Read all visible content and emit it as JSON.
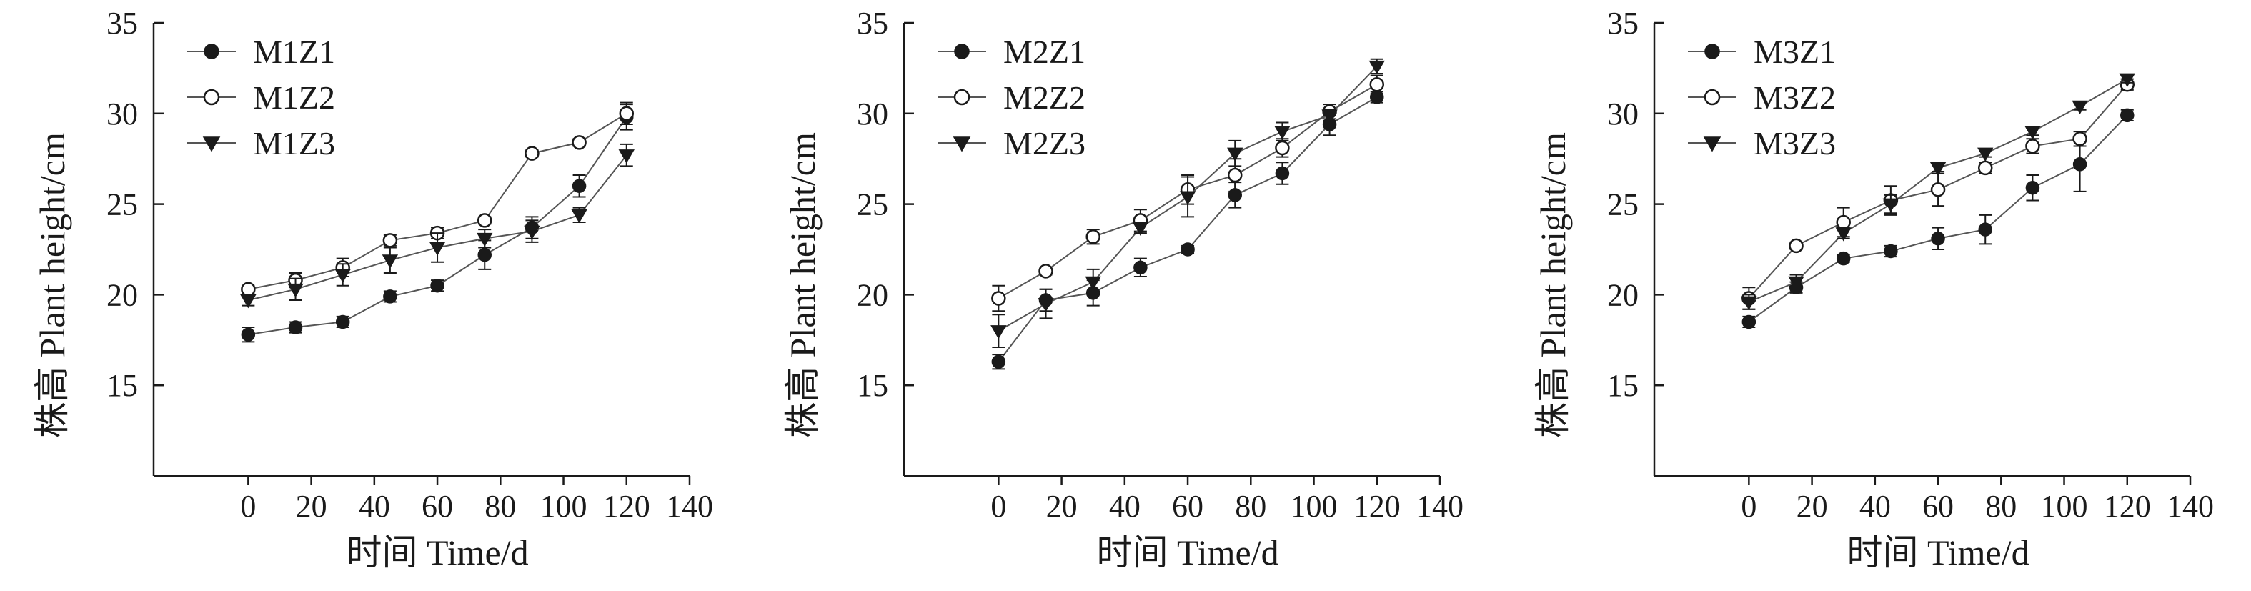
{
  "chart_data": [
    {
      "type": "line",
      "xlabel": "时间 Time/d",
      "ylabel": "株高 Plant height/cm",
      "xlim": [
        -30,
        140
      ],
      "ylim": [
        10,
        35
      ],
      "xticks": [
        0,
        20,
        40,
        60,
        80,
        100,
        120,
        140
      ],
      "yticks": [
        15,
        20,
        25,
        30,
        35
      ],
      "x": [
        0,
        15,
        30,
        45,
        60,
        75,
        90,
        105,
        120
      ],
      "legend_position": "top-left",
      "series": [
        {
          "name": "M1Z1",
          "marker": "filled-circle",
          "values": [
            17.8,
            18.2,
            18.5,
            19.9,
            20.5,
            22.2,
            23.7,
            26.0,
            29.8
          ],
          "errors": [
            0.4,
            0.3,
            0.3,
            0.3,
            0.3,
            0.8,
            0.6,
            0.6,
            0.7
          ]
        },
        {
          "name": "M1Z2",
          "marker": "open-circle",
          "values": [
            20.3,
            20.8,
            21.5,
            23.0,
            23.4,
            24.1,
            27.8,
            28.4,
            30.0
          ],
          "errors": [
            0.2,
            0.4,
            0.5,
            0.3,
            0.3,
            0.2,
            0.2,
            0.2,
            0.6
          ]
        },
        {
          "name": "M1Z3",
          "marker": "filled-triangle",
          "values": [
            19.7,
            20.3,
            21.1,
            21.9,
            22.6,
            23.1,
            23.5,
            24.4,
            27.7
          ],
          "errors": [
            0.3,
            0.6,
            0.6,
            0.7,
            0.8,
            0.5,
            0.6,
            0.4,
            0.6
          ]
        }
      ]
    },
    {
      "type": "line",
      "xlabel": "时间 Time/d",
      "ylabel": "株高 Plant height/cm",
      "xlim": [
        -30,
        140
      ],
      "ylim": [
        10,
        35
      ],
      "xticks": [
        0,
        20,
        40,
        60,
        80,
        100,
        120,
        140
      ],
      "yticks": [
        15,
        20,
        25,
        30,
        35
      ],
      "x": [
        0,
        15,
        30,
        45,
        60,
        75,
        90,
        105,
        120
      ],
      "legend_position": "top-left",
      "series": [
        {
          "name": "M2Z1",
          "marker": "filled-circle",
          "values": [
            16.3,
            19.7,
            20.1,
            21.5,
            22.5,
            25.5,
            26.7,
            29.4,
            30.9
          ],
          "errors": [
            0.4,
            0.6,
            0.7,
            0.5,
            0.2,
            0.7,
            0.6,
            0.6,
            0.3
          ]
        },
        {
          "name": "M2Z2",
          "marker": "open-circle",
          "values": [
            19.8,
            21.3,
            23.2,
            24.1,
            25.8,
            26.6,
            28.1,
            30.1,
            31.6
          ],
          "errors": [
            0.7,
            0.2,
            0.4,
            0.6,
            0.8,
            0.9,
            0.5,
            0.4,
            0.5
          ]
        },
        {
          "name": "M2Z3",
          "marker": "filled-triangle",
          "values": [
            18.0,
            19.5,
            20.7,
            23.7,
            25.4,
            27.8,
            29.0,
            29.9,
            32.6
          ],
          "errors": [
            0.9,
            0.8,
            0.7,
            0.3,
            1.1,
            0.7,
            0.5,
            0.3,
            0.4
          ]
        }
      ]
    },
    {
      "type": "line",
      "xlabel": "时间 Time/d",
      "ylabel": "株高 Plant height/cm",
      "xlim": [
        -30,
        140
      ],
      "ylim": [
        10,
        35
      ],
      "xticks": [
        0,
        20,
        40,
        60,
        80,
        100,
        120,
        140
      ],
      "yticks": [
        15,
        20,
        25,
        30,
        35
      ],
      "x": [
        0,
        15,
        30,
        45,
        60,
        75,
        90,
        105,
        120
      ],
      "legend_position": "top-left",
      "series": [
        {
          "name": "M3Z1",
          "marker": "filled-circle",
          "values": [
            18.5,
            20.4,
            22.0,
            22.4,
            23.1,
            23.6,
            25.9,
            27.2,
            29.9
          ],
          "errors": [
            0.3,
            0.3,
            0.2,
            0.3,
            0.6,
            0.8,
            0.7,
            1.5,
            0.3
          ]
        },
        {
          "name": "M3Z2",
          "marker": "open-circle",
          "values": [
            19.8,
            22.7,
            24.0,
            25.2,
            25.8,
            27.0,
            28.2,
            28.6,
            31.6
          ],
          "errors": [
            0.6,
            0.2,
            0.8,
            0.8,
            0.9,
            0.3,
            0.4,
            0.4,
            0.3
          ]
        },
        {
          "name": "M3Z3",
          "marker": "filled-triangle",
          "values": [
            19.6,
            20.7,
            23.4,
            25.0,
            27.0,
            27.8,
            29.0,
            30.4,
            31.9
          ],
          "errors": [
            0.4,
            0.4,
            0.3,
            0.5,
            0.2,
            0.2,
            0.2,
            0.2,
            0.2
          ]
        }
      ]
    }
  ]
}
